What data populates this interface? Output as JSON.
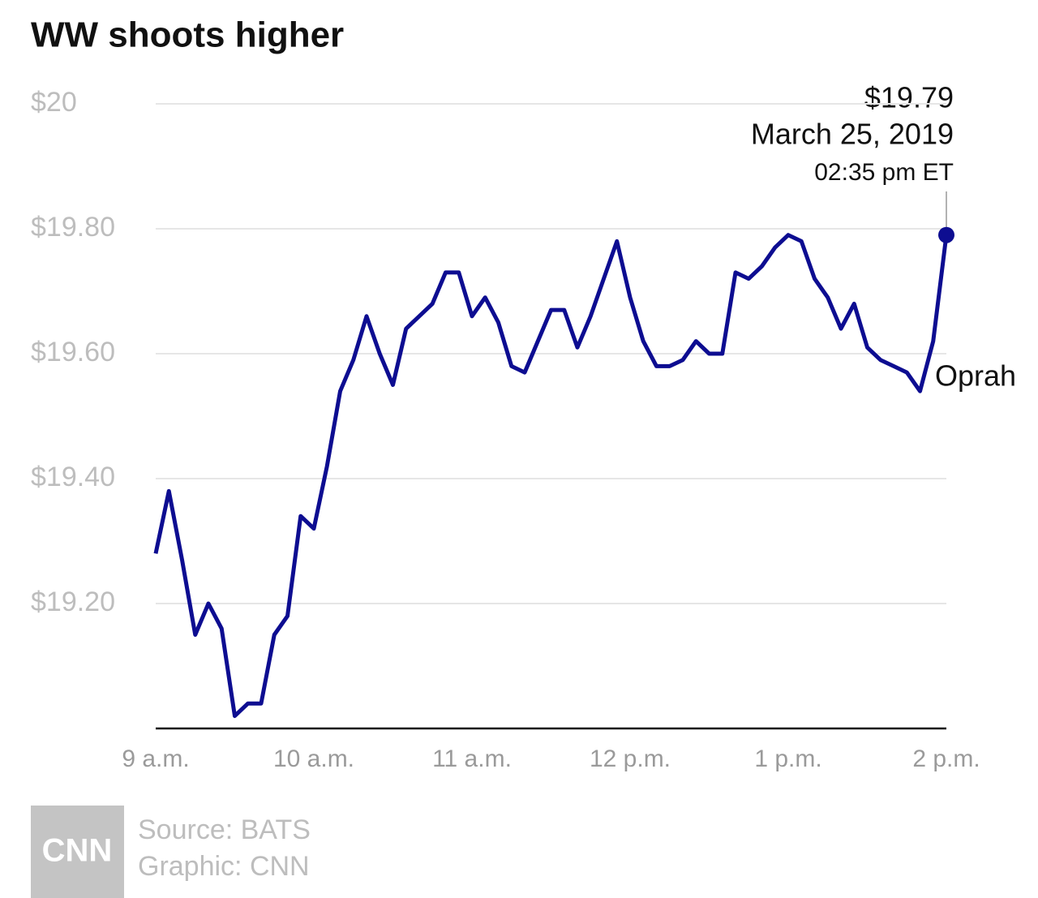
{
  "chart_data": {
    "type": "line",
    "title": "WW shoots higher",
    "x": [
      540,
      545,
      550,
      555,
      560,
      565,
      570,
      575,
      580,
      585,
      590,
      595,
      600,
      605,
      610,
      615,
      620,
      625,
      630,
      635,
      640,
      645,
      650,
      655,
      660,
      665,
      670,
      675,
      680,
      685,
      690,
      695,
      700,
      705,
      710,
      715,
      720,
      725,
      730,
      735,
      740,
      745,
      750,
      755,
      760,
      765,
      770,
      775,
      780,
      785,
      790,
      795,
      800,
      805,
      810,
      815,
      820,
      825,
      830,
      835,
      840
    ],
    "series": [
      {
        "name": "WW",
        "color": "#0d0d91",
        "values": [
          19.28,
          19.38,
          19.27,
          19.15,
          19.2,
          19.16,
          19.02,
          19.04,
          19.04,
          19.15,
          19.18,
          19.34,
          19.32,
          19.42,
          19.54,
          19.59,
          19.66,
          19.6,
          19.55,
          19.64,
          19.66,
          19.68,
          19.73,
          19.73,
          19.66,
          19.69,
          19.65,
          19.58,
          19.57,
          19.62,
          19.67,
          19.67,
          19.61,
          19.66,
          19.72,
          19.78,
          19.69,
          19.62,
          19.58,
          19.58,
          19.59,
          19.62,
          19.6,
          19.6,
          19.73,
          19.72,
          19.74,
          19.77,
          19.79,
          19.78,
          19.72,
          19.69,
          19.64,
          19.68,
          19.61,
          19.59,
          19.58,
          19.57,
          19.54,
          19.62,
          19.79
        ]
      }
    ],
    "xlim": [
      540,
      840
    ],
    "xticks": [
      {
        "value": 540,
        "label": "9 a.m."
      },
      {
        "value": 600,
        "label": "10 a.m."
      },
      {
        "value": 660,
        "label": "11 a.m."
      },
      {
        "value": 720,
        "label": "12 p.m."
      },
      {
        "value": 780,
        "label": "1 p.m."
      },
      {
        "value": 840,
        "label": "2 p.m."
      }
    ],
    "ylim": [
      19,
      20
    ],
    "yticks": [
      {
        "value": 19.2,
        "label": "$19.20"
      },
      {
        "value": 19.4,
        "label": "$19.40"
      },
      {
        "value": 19.6,
        "label": "$19.60"
      },
      {
        "value": 19.8,
        "label": "$19.80"
      },
      {
        "value": 20,
        "label": "$20"
      }
    ],
    "grid": true,
    "annotation": {
      "price": "$19.79",
      "date": "March 25, 2019",
      "time": "02:35 pm ET"
    },
    "event_label": "Oprah"
  },
  "footer": {
    "logo": "CNN",
    "source": "Source: BATS",
    "credit": "Graphic: CNN"
  }
}
